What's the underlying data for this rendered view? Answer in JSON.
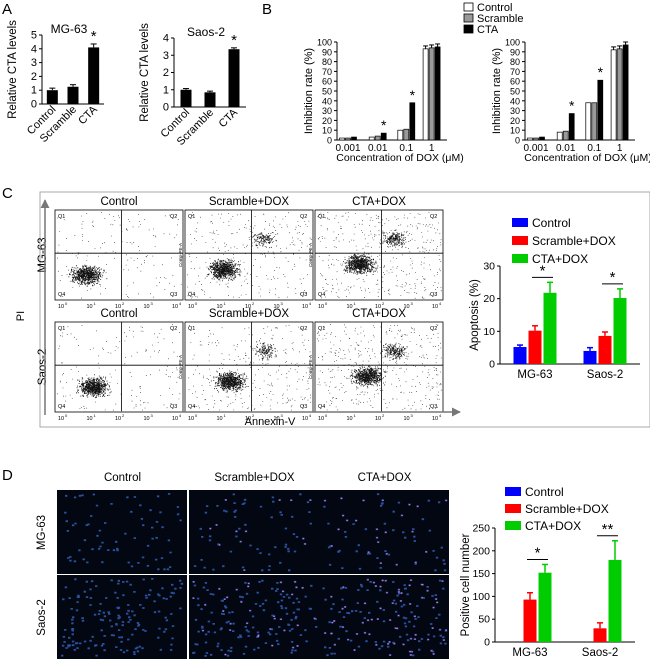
{
  "panels": {
    "A": "A",
    "B": "B",
    "C": "C",
    "D": "D"
  },
  "colors": {
    "control": "#0000ff",
    "scramble": "#ff0000",
    "cta": "#00cc00",
    "bw_control": "#ffffff",
    "bw_scramble": "#999999",
    "bw_cta": "#000000"
  },
  "chart_data": [
    {
      "id": "A1",
      "type": "bar",
      "title": "MG-63",
      "ylabel": "Relative CTA levels",
      "categories": [
        "Control",
        "Scramble",
        "CTA"
      ],
      "values": [
        1.0,
        1.25,
        4.1
      ],
      "errors": [
        0.15,
        0.15,
        0.25
      ],
      "ylim": [
        0,
        5
      ],
      "yticks": [
        "0",
        "1",
        "2",
        "3",
        "4",
        "5"
      ],
      "significance": [
        {
          "category": "CTA",
          "label": "*"
        }
      ]
    },
    {
      "id": "A2",
      "type": "bar",
      "title": "Saos-2",
      "ylabel": "Relative CTA levels",
      "categories": [
        "Control",
        "Scramble",
        "CTA"
      ],
      "values": [
        1.0,
        0.85,
        3.35
      ],
      "errors": [
        0.07,
        0.07,
        0.08
      ],
      "ylim": [
        0,
        4
      ],
      "yticks": [
        "0",
        "1",
        "2",
        "3",
        "4"
      ],
      "significance": [
        {
          "category": "CTA",
          "label": "*"
        }
      ]
    },
    {
      "id": "B1",
      "type": "bar",
      "ylabel": "Inhibition rate (%)",
      "xlabel": "Concentration of DOX (μM)",
      "categories": [
        "0.001",
        "0.01",
        "0.1",
        "1"
      ],
      "series": [
        {
          "name": "Control",
          "values": [
            2,
            3,
            10,
            93
          ]
        },
        {
          "name": "Scramble",
          "values": [
            2,
            4,
            11,
            94
          ]
        },
        {
          "name": "CTA",
          "values": [
            3,
            7,
            38,
            95
          ]
        }
      ],
      "ylim": [
        0,
        100
      ],
      "yticks": [
        "0",
        "10",
        "20",
        "30",
        "40",
        "50",
        "60",
        "70",
        "80",
        "90",
        "100"
      ],
      "significance": [
        {
          "category": "0.01",
          "label": "*"
        },
        {
          "category": "0.1",
          "label": "*"
        }
      ]
    },
    {
      "id": "B2",
      "type": "bar",
      "ylabel": "Inhibition rate (%)",
      "xlabel": "Concentration of DOX (μM)",
      "categories": [
        "0.001",
        "0.01",
        "0.1",
        "1"
      ],
      "series": [
        {
          "name": "Control",
          "values": [
            2,
            8,
            38,
            92
          ]
        },
        {
          "name": "Scramble",
          "values": [
            2,
            9,
            38,
            93
          ]
        },
        {
          "name": "CTA",
          "values": [
            3,
            27,
            61,
            97
          ]
        }
      ],
      "ylim": [
        0,
        100
      ],
      "yticks": [
        "0",
        "10",
        "20",
        "30",
        "40",
        "50",
        "60",
        "70",
        "80",
        "90",
        "100"
      ],
      "significance": [
        {
          "category": "0.01",
          "label": "*"
        },
        {
          "category": "0.1",
          "label": "*"
        }
      ]
    },
    {
      "id": "C",
      "type": "bar",
      "ylabel": "Apoptosis (%)",
      "categories": [
        "MG-63",
        "Saos-2"
      ],
      "series": [
        {
          "name": "Control",
          "values": [
            5.2,
            4.0
          ]
        },
        {
          "name": "Scramble+DOX",
          "values": [
            10.2,
            8.6
          ]
        },
        {
          "name": "CTA+DOX",
          "values": [
            21.8,
            20.2
          ]
        }
      ],
      "errors": [
        [
          0.6,
          1.0
        ],
        [
          1.5,
          1.2
        ],
        [
          3.2,
          2.8
        ]
      ],
      "ylim": [
        0,
        30
      ],
      "yticks": [
        "0",
        "10",
        "20",
        "30"
      ],
      "significance": [
        {
          "category": "MG-63",
          "label": "*"
        },
        {
          "category": "Saos-2",
          "label": "*"
        }
      ]
    },
    {
      "id": "D",
      "type": "bar",
      "ylabel": "Positive cell number",
      "categories": [
        "MG-63",
        "Saos-2"
      ],
      "series": [
        {
          "name": "Control",
          "values": [
            0,
            0
          ]
        },
        {
          "name": "Scramble+DOX",
          "values": [
            93,
            30
          ]
        },
        {
          "name": "CTA+DOX",
          "values": [
            152,
            180
          ]
        }
      ],
      "errors": [
        [
          0,
          0
        ],
        [
          15,
          12
        ],
        [
          18,
          42
        ]
      ],
      "ylim": [
        0,
        250
      ],
      "yticks": [
        "0",
        "50",
        "100",
        "150",
        "200",
        "250"
      ],
      "significance": [
        {
          "category": "MG-63",
          "label": "*"
        },
        {
          "category": "Saos-2",
          "label": "**"
        }
      ]
    }
  ],
  "legendB": [
    "Control",
    "Scramble",
    "CTA"
  ],
  "legendC": [
    "Control",
    "Scramble+DOX",
    "CTA+DOX"
  ],
  "flow": {
    "columns": [
      "Control",
      "Scramble+DOX",
      "CTA+DOX"
    ],
    "rows": [
      "MG-63",
      "Saos-2"
    ],
    "xaxis": "Annexin-V",
    "yaxis": "PI",
    "quadrants": [
      "Q1",
      "Q2",
      "Q3",
      "Q4"
    ],
    "xticks": [
      "10",
      "10",
      "10",
      "10",
      "10"
    ],
    "xtick_exps": [
      "0",
      "1",
      "2",
      "3",
      "4"
    ],
    "ylab_small": "Comp-PE-A"
  },
  "micro": {
    "columns": [
      "Control",
      "Scramble+DOX",
      "CTA+DOX"
    ],
    "rows": [
      "MG-63",
      "Saos-2"
    ]
  }
}
